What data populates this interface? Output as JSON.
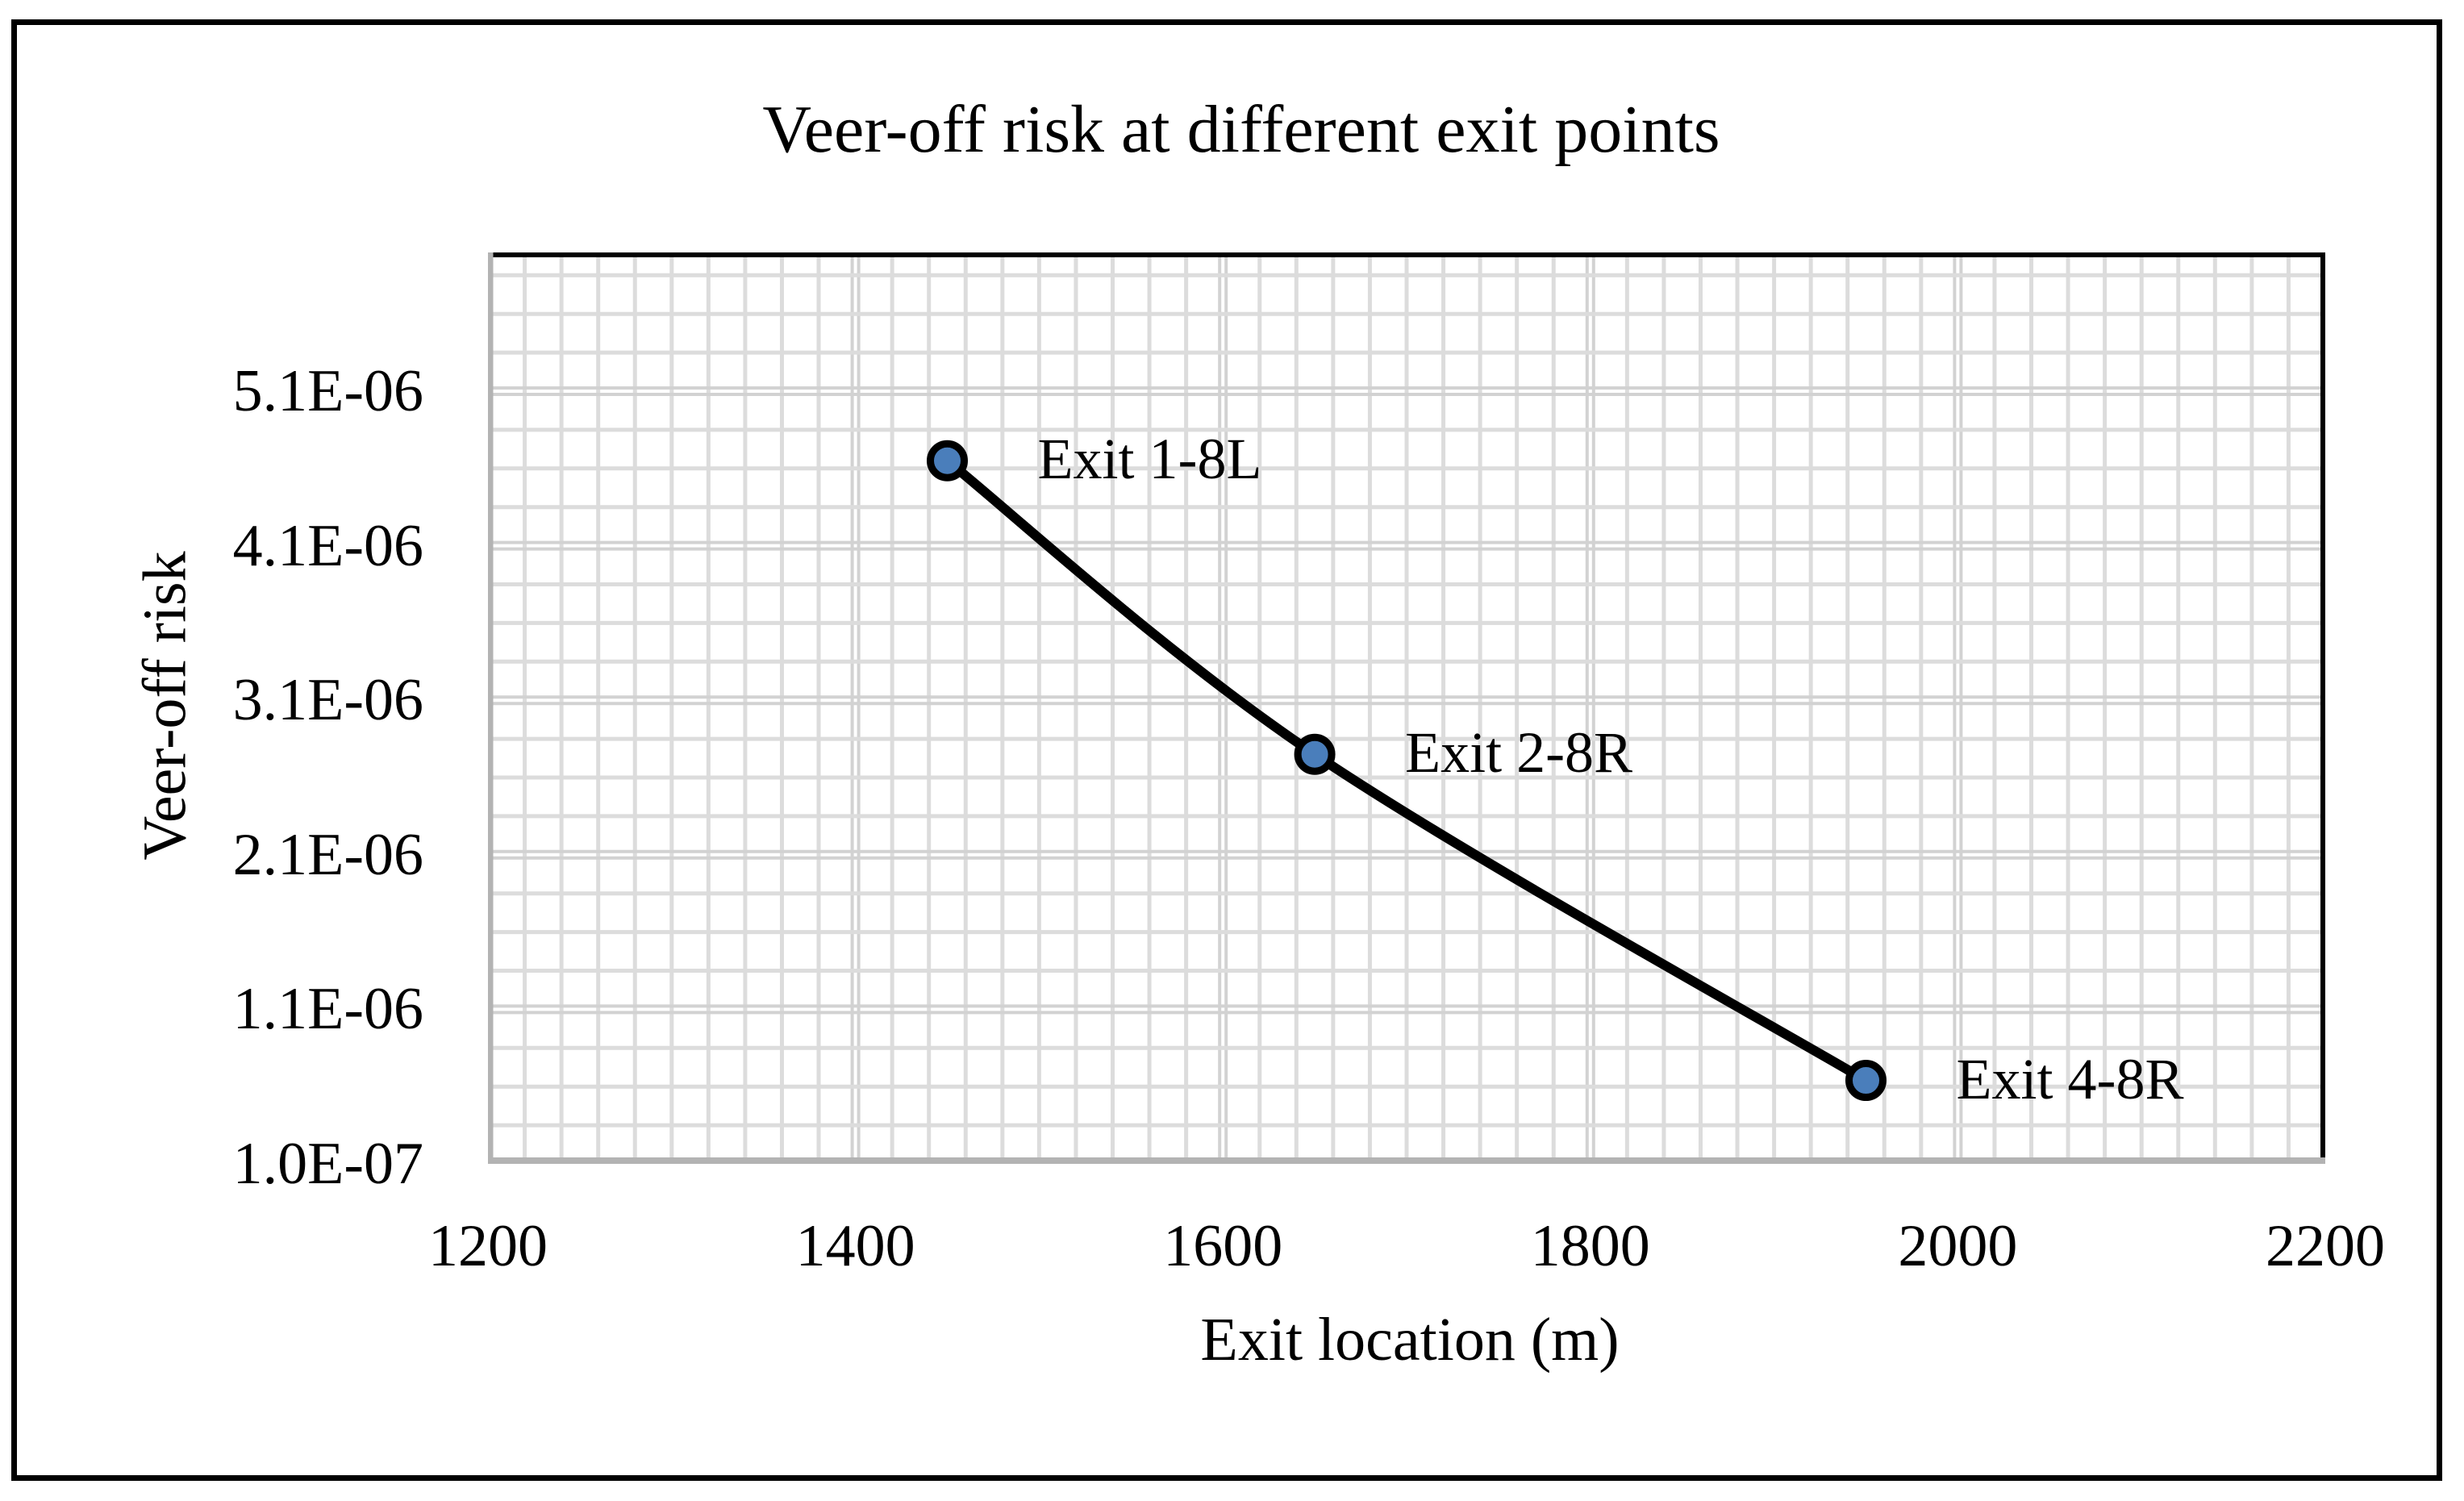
{
  "figure": {
    "title": "Veer-off risk at different exit points",
    "x_axis": {
      "title": "Exit location (m)",
      "tick_labels": [
        "1200",
        "1400",
        "1600",
        "1800",
        "2000",
        "2200"
      ]
    },
    "y_axis": {
      "title": "Veer-off risk",
      "tick_labels_top_to_bottom": [
        "5.1E-06",
        "4.1E-06",
        "3.1E-06",
        "2.1E-06",
        "1.1E-06",
        "1.0E-07"
      ]
    }
  },
  "chart_data": {
    "type": "line",
    "title": "Veer-off risk at different exit points",
    "xlabel": "Exit location (m)",
    "ylabel": "Veer-off risk",
    "xlim": [
      1200,
      2200
    ],
    "ylim": [
      1e-07,
      6e-06
    ],
    "x_major_unit": 200,
    "y_major_unit": 1e-06,
    "grid": "major and minor gridlines, light gray",
    "legend": "none",
    "smooth_line": true,
    "series": [
      {
        "name": "Veer-off risk",
        "points": [
          {
            "x": 1450,
            "y": 4.65e-06,
            "label": "Exit 1-8L"
          },
          {
            "x": 1650,
            "y": 2.75e-06,
            "label": "Exit 2-8R"
          },
          {
            "x": 1950,
            "y": 6.4e-07,
            "label": "Exit 4-8R"
          }
        ]
      }
    ]
  },
  "colors": {
    "line": "#000000",
    "marker_fill": "#4a7ebb",
    "marker_stroke": "#000000",
    "grid_minor": "#dcdcdc",
    "grid_major": "#d2d2d2",
    "axis_line": "#b3b3b3",
    "plot_border": "#000000",
    "frame": "#000000",
    "text": "#000000"
  }
}
